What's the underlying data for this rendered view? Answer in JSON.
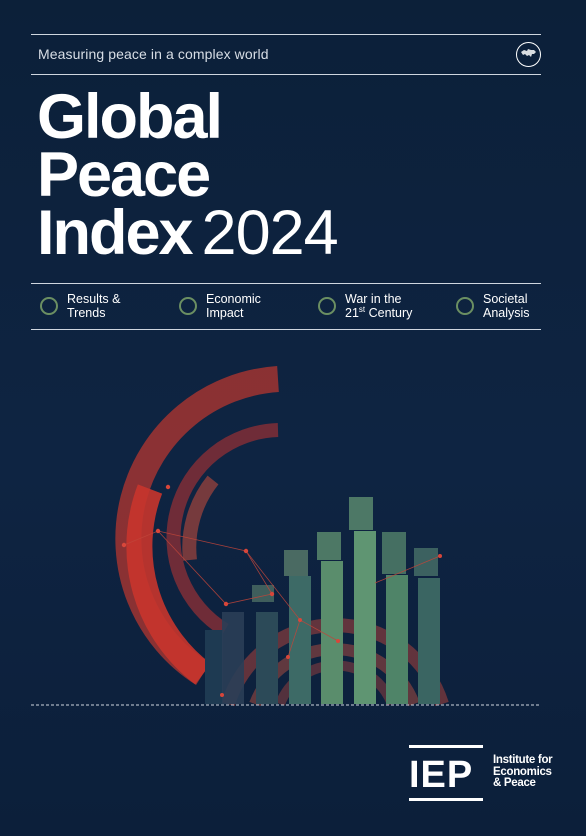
{
  "header": {
    "tagline": "Measuring peace in a complex world",
    "globe_icon": "globe-icon"
  },
  "title": {
    "line1": "Global",
    "line2": "Peace",
    "line3": "Index",
    "year": "2024"
  },
  "sections": [
    {
      "label_line1": "Results &",
      "label_line2": "Trends",
      "icon": "circle-icon"
    },
    {
      "label_line1": "Economic",
      "label_line2": "Impact",
      "icon": "circle-icon"
    },
    {
      "label_line1": "War in the",
      "label_line2_prefix": "21",
      "label_line2_sup": "st",
      "label_line2_suffix": " Century",
      "icon": "circle-icon"
    },
    {
      "label_line1": "Societal",
      "label_line2": "Analysis",
      "icon": "circle-icon"
    }
  ],
  "logo": {
    "letters": "IEP",
    "name_line1": "Institute for",
    "name_line2": "Economics",
    "name_line3": "& Peace"
  },
  "colors": {
    "background": "#0d2240",
    "accent_red": "#c8352c",
    "accent_green": "#6b8f62",
    "bar_green": "#5a8d6c"
  }
}
